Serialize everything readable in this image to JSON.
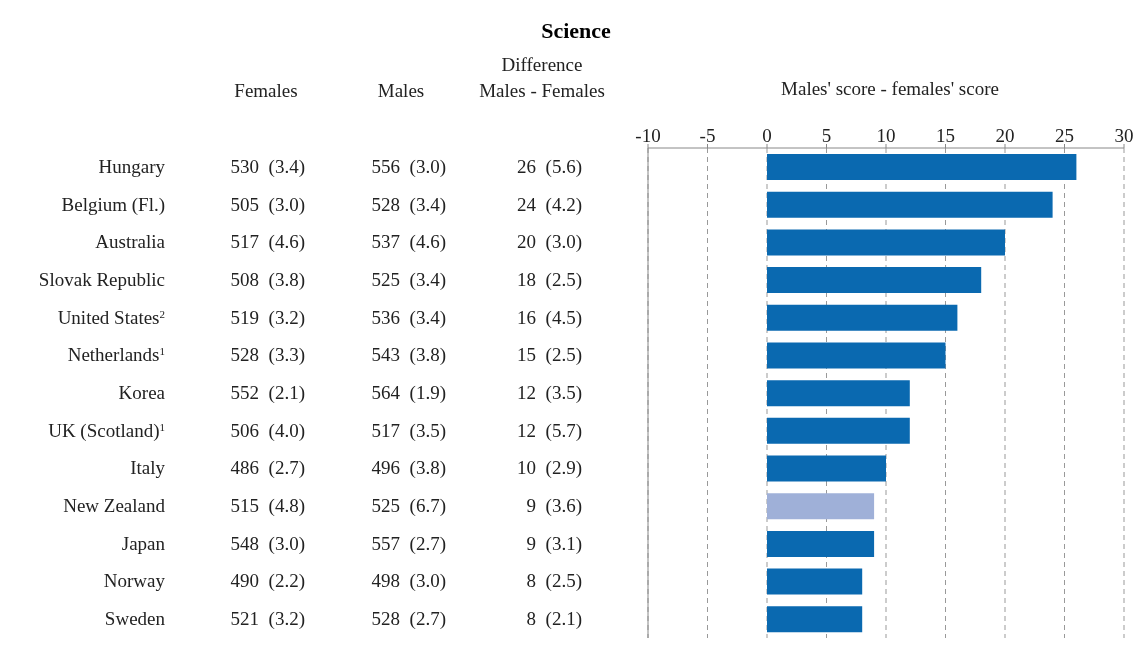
{
  "chart_data": {
    "type": "bar",
    "orientation": "horizontal",
    "title": "Science",
    "x2label": "Males' score - females' score",
    "categories": [
      "Hungary",
      "Belgium (Fl.)",
      "Australia",
      "Slovak Republic",
      "United States$^{2}$",
      "Netherlands$^{1}$",
      "Korea",
      "UK (Scotland)$^{1}$",
      "Italy",
      "New Zealand",
      "Japan",
      "Norway",
      "Sweden"
    ],
    "values": [
      26,
      24,
      20,
      18,
      16,
      15,
      12,
      12,
      10,
      9,
      9,
      8,
      8
    ],
    "value_labels": [
      "26  (5.6)",
      "24  (4.2)",
      "20  (3.0)",
      "18  (2.5)",
      "16  (4.5)",
      "15  (2.5)",
      "12  (3.5)",
      "12  (5.7)",
      "10  (2.9)",
      "9  (3.6)",
      "9  (3.1)",
      "8  (2.5)",
      "8  (2.1)"
    ],
    "colors": [
      "#0a69b0",
      "#0a69b0",
      "#0a69b0",
      "#0a69b0",
      "#0a69b0",
      "#0a69b0",
      "#0a69b0",
      "#0a69b0",
      "#0a69b0",
      "#9fb0d8",
      "#0a69b0",
      "#0a69b0",
      "#0a69b0"
    ],
    "x2lim": [
      -10,
      30
    ],
    "x2ticks": [
      -10,
      -5,
      0,
      5,
      10,
      15,
      20,
      25,
      30
    ],
    "grid": "x",
    "annotations": [
      "Females",
      "Males",
      "Difference\nMales - Females",
      "530  (3.4)",
      "556  (3.0)",
      "505  (3.0)",
      "528  (3.4)",
      "517  (4.6)",
      "537  (4.6)",
      "508  (3.8)",
      "525  (3.4)",
      "519  (3.2)",
      "536  (3.4)",
      "528  (3.3)",
      "543  (3.8)",
      "552  (2.1)",
      "564  (1.9)",
      "506  (4.0)",
      "517  (3.5)",
      "486  (2.7)",
      "496  (3.8)",
      "515  (4.8)",
      "525  (6.7)",
      "548  (3.0)",
      "557  (2.7)",
      "490  (2.2)",
      "498  (3.0)",
      "521  (3.2)",
      "528  (2.7)"
    ]
  }
}
